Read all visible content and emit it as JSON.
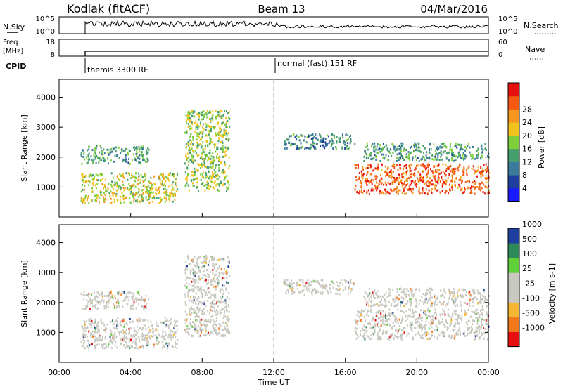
{
  "header": {
    "station": "Kodiak (fitACF)",
    "beam": "Beam 13",
    "date": "04/Mar/2016"
  },
  "panels": {
    "nsky": {
      "label": "N.Sky",
      "left_ticks": [
        "10^5",
        "10^0"
      ],
      "right_ticks": [
        "10^5",
        "10^0"
      ],
      "right_label": "N.Search"
    },
    "freq": {
      "label_line1": "Freq.",
      "label_line2": "[MHz]",
      "left_ticks": [
        "18",
        "8"
      ],
      "right_ticks": [
        "60",
        "0"
      ],
      "right_label": "Nave"
    },
    "cpid": {
      "label": "CPID",
      "modes": [
        "themis 3300 RF",
        "normal (fast) 151 RF"
      ]
    }
  },
  "colors": {
    "power": [
      "#1a1aff",
      "#1f3f9e",
      "#3a7a9a",
      "#45a06e",
      "#7fcf3a",
      "#f2c21c",
      "#f5961e",
      "#f45a12",
      "#e80f0f"
    ],
    "velocity": [
      "#e80f0f",
      "#f2781c",
      "#f5b733",
      "#c8c8c0",
      "#c8c8c0",
      "#5fcf3a",
      "#2f8a5a",
      "#1f3f9e"
    ]
  },
  "chart_data": [
    {
      "type": "heatmap",
      "name": "power",
      "ylabel": "Slant Range [km]",
      "xlabel": "Time UT",
      "x_ticks": [
        "00:00",
        "04:00",
        "08:00",
        "12:00",
        "16:00",
        "20:00",
        "00:00"
      ],
      "y_ticks": [
        1000,
        2000,
        3000,
        4000
      ],
      "ylim": [
        0,
        4600
      ],
      "xlim_hours": [
        0,
        24
      ],
      "colorbar": {
        "label": "Power [dB]",
        "ticks": [
          4,
          8,
          12,
          16,
          20,
          24,
          28
        ]
      },
      "regions": [
        {
          "t": [
            1.2,
            6.6
          ],
          "r": [
            500,
            1500
          ],
          "power": 16
        },
        {
          "t": [
            1.2,
            5.0
          ],
          "r": [
            1800,
            2400
          ],
          "power": 10
        },
        {
          "t": [
            7.0,
            9.5
          ],
          "r": [
            900,
            3600
          ],
          "power": 14
        },
        {
          "t": [
            12.5,
            16.5
          ],
          "r": [
            2300,
            2800
          ],
          "power": 8
        },
        {
          "t": [
            16.5,
            24.0
          ],
          "r": [
            800,
            1800
          ],
          "power": 24
        },
        {
          "t": [
            17.0,
            24.0
          ],
          "r": [
            1900,
            2500
          ],
          "power": 10
        }
      ]
    },
    {
      "type": "heatmap",
      "name": "velocity",
      "ylabel": "Slant Range [km]",
      "xlabel": "Time UT",
      "x_ticks": [
        "00:00",
        "04:00",
        "08:00",
        "12:00",
        "16:00",
        "20:00",
        "00:00"
      ],
      "y_ticks": [
        1000,
        2000,
        3000,
        4000
      ],
      "ylim": [
        0,
        4600
      ],
      "xlim_hours": [
        0,
        24
      ],
      "colorbar": {
        "label": "Velocity [m s-1]",
        "ticks": [
          -1000,
          -500,
          -100,
          -25,
          25,
          100,
          500,
          1000
        ]
      },
      "regions": [
        {
          "t": [
            1.2,
            6.6
          ],
          "r": [
            500,
            1500
          ],
          "velocity": 0
        },
        {
          "t": [
            1.2,
            5.0
          ],
          "r": [
            1800,
            2400
          ],
          "velocity": 0
        },
        {
          "t": [
            7.0,
            9.5
          ],
          "r": [
            900,
            3600
          ],
          "velocity": 0
        },
        {
          "t": [
            12.5,
            16.5
          ],
          "r": [
            2300,
            2800
          ],
          "velocity": 0
        },
        {
          "t": [
            16.5,
            24.0
          ],
          "r": [
            800,
            1800
          ],
          "velocity": 0
        },
        {
          "t": [
            17.0,
            24.0
          ],
          "r": [
            1900,
            2500
          ],
          "velocity": 0
        }
      ]
    }
  ]
}
